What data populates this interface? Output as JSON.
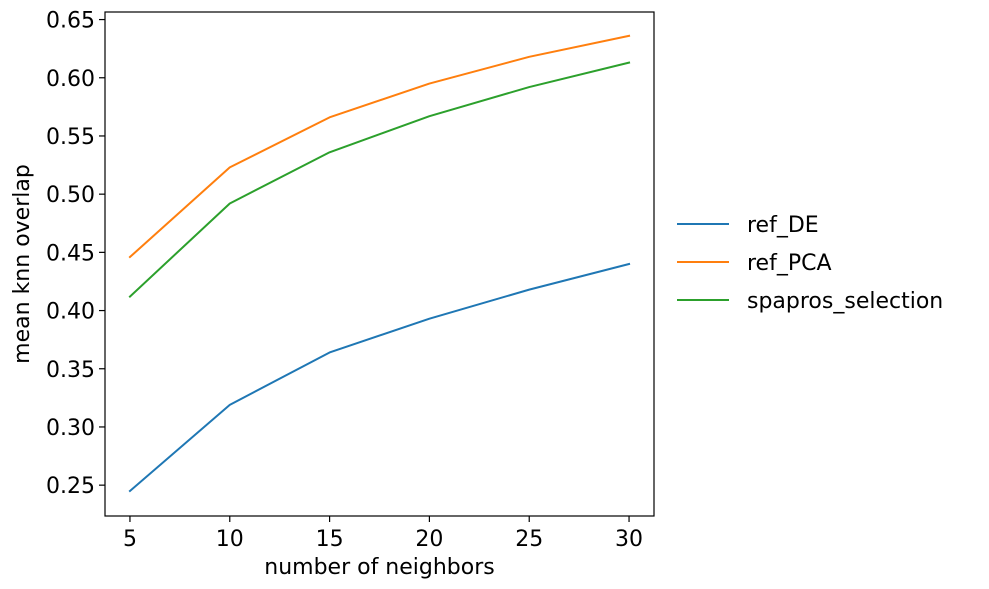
{
  "chart_data": {
    "type": "line",
    "x": [
      5,
      10,
      15,
      20,
      25,
      30
    ],
    "series": [
      {
        "name": "ref_DE",
        "color": "#1f77b4",
        "values": [
          0.245,
          0.319,
          0.364,
          0.393,
          0.418,
          0.44
        ]
      },
      {
        "name": "ref_PCA",
        "color": "#ff7f0e",
        "values": [
          0.446,
          0.523,
          0.566,
          0.595,
          0.618,
          0.636
        ]
      },
      {
        "name": "spapros_selection",
        "color": "#2ca02c",
        "values": [
          0.412,
          0.492,
          0.536,
          0.567,
          0.592,
          0.613
        ]
      }
    ],
    "xlabel": "number of neighbors",
    "ylabel": "mean knn overlap",
    "xlim": [
      3.75,
      31.25
    ],
    "ylim": [
      0.2235,
      0.6565
    ],
    "xticks": [
      5,
      10,
      15,
      20,
      25,
      30
    ],
    "xtick_labels": [
      "5",
      "10",
      "15",
      "20",
      "25",
      "30"
    ],
    "yticks": [
      0.25,
      0.3,
      0.35,
      0.4,
      0.45,
      0.5,
      0.55,
      0.6,
      0.65
    ],
    "ytick_labels": [
      "0.25",
      "0.30",
      "0.35",
      "0.40",
      "0.45",
      "0.50",
      "0.55",
      "0.60",
      "0.65"
    ],
    "grid": false,
    "legend_position": "outside right"
  }
}
